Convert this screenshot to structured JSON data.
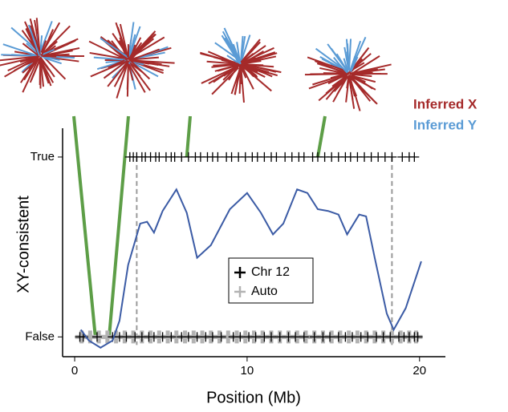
{
  "chart_data": {
    "type": "scatter",
    "xlabel": "Position (Mb)",
    "ylabel": "XY-consistent",
    "xlim": [
      -0.7,
      21.5
    ],
    "ylim": [
      -0.11,
      1.16
    ],
    "xticks": [
      0,
      10,
      20
    ],
    "yticks": [
      {
        "value": 0,
        "label": "False"
      },
      {
        "value": 1,
        "label": "True"
      }
    ],
    "series": [
      {
        "name": "Chr 12",
        "color": "#000000",
        "x": [
          3.2,
          3.4,
          3.6,
          3.9,
          4.1,
          4.4,
          4.7,
          4.9,
          5.3,
          5.6,
          5.8,
          6.2,
          6.6,
          7.0,
          7.3,
          7.7,
          8.0,
          8.3,
          8.8,
          9.1,
          9.5,
          9.9,
          10.3,
          10.6,
          11.0,
          11.4,
          11.7,
          12.2,
          12.6,
          13.0,
          13.3,
          13.8,
          14.1,
          14.5,
          14.9,
          15.3,
          15.7,
          16.0,
          16.4,
          16.8,
          17.2,
          17.6,
          18.0,
          18.4,
          19.0,
          19.4,
          19.7,
          0.3,
          0.5,
          1.3,
          2.2,
          2.6,
          3.0,
          3.5,
          3.9,
          4.3,
          4.6,
          5.1,
          5.6,
          6.2,
          6.6,
          7.1,
          7.6,
          8.0,
          8.5,
          9.2,
          9.6,
          10.1,
          10.5,
          11.0,
          11.4,
          11.9,
          12.4,
          12.8,
          13.3,
          13.9,
          14.4,
          14.8,
          15.3,
          15.7,
          16.1,
          16.6,
          17.0,
          17.5,
          17.9,
          18.3,
          18.8,
          19.1,
          19.4,
          19.7,
          19.9
        ],
        "values": [
          1,
          1,
          1,
          1,
          1,
          1,
          1,
          1,
          1,
          1,
          1,
          1,
          1,
          1,
          1,
          1,
          1,
          1,
          1,
          1,
          1,
          1,
          1,
          1,
          1,
          1,
          1,
          1,
          1,
          1,
          1,
          1,
          1,
          1,
          1,
          1,
          1,
          1,
          1,
          1,
          1,
          1,
          1,
          1,
          1,
          1,
          1,
          0,
          0,
          0,
          0,
          0,
          0,
          0,
          0,
          0,
          0,
          0,
          0,
          0,
          0,
          0,
          0,
          0,
          0,
          0,
          0,
          0,
          0,
          0,
          0,
          0,
          0,
          0,
          0,
          0,
          0,
          0,
          0,
          0,
          0,
          0,
          0,
          0,
          0,
          0,
          0,
          0,
          0,
          0,
          0
        ]
      },
      {
        "name": "Auto",
        "color": "#b3b3b3",
        "x": [
          0.4,
          0.9,
          1.4,
          1.9,
          2.4,
          2.9,
          3.4,
          3.9,
          4.4,
          4.9,
          5.4,
          5.9,
          6.4,
          6.9,
          7.4,
          7.9,
          8.4,
          8.9,
          9.4,
          9.9,
          10.4,
          10.9,
          11.4,
          11.9,
          12.4,
          12.9,
          13.4,
          13.9,
          14.4,
          14.9,
          15.4,
          15.9,
          16.4,
          16.9,
          17.4,
          17.9,
          18.4,
          18.9,
          19.4,
          19.8
        ],
        "values": [
          0,
          0,
          0,
          0,
          0,
          0,
          0,
          0,
          0,
          0,
          0,
          0,
          0,
          0,
          0,
          0,
          0,
          0,
          0,
          0,
          0,
          0,
          0,
          0,
          0,
          0,
          0,
          0,
          0,
          0,
          0,
          0,
          0,
          0,
          0,
          0,
          0,
          0,
          0,
          0
        ]
      }
    ],
    "curve": {
      "color": "#3b5ba5",
      "x": [
        0.36,
        0.82,
        1.5,
        2.2,
        2.6,
        3.1,
        3.8,
        4.2,
        4.6,
        5.1,
        5.9,
        6.5,
        7.1,
        7.9,
        9.0,
        10.0,
        10.8,
        11.5,
        12.1,
        12.9,
        13.5,
        14.1,
        14.7,
        15.3,
        15.8,
        16.5,
        16.9,
        17.4,
        18.1,
        18.5,
        19.2,
        20.1
      ],
      "values": [
        0.04,
        -0.02,
        -0.06,
        -0.02,
        0.09,
        0.4,
        0.63,
        0.64,
        0.58,
        0.7,
        0.82,
        0.69,
        0.44,
        0.51,
        0.71,
        0.8,
        0.69,
        0.57,
        0.63,
        0.82,
        0.8,
        0.71,
        0.7,
        0.68,
        0.57,
        0.68,
        0.67,
        0.44,
        0.13,
        0.04,
        0.16,
        0.42
      ]
    },
    "vlines": [
      3.6,
      18.4
    ],
    "tree_links": [
      {
        "x": 1.2,
        "y": 0
      },
      {
        "x": 2.0,
        "y": 0
      },
      {
        "x": 6.5,
        "y": 1
      },
      {
        "x": 14.1,
        "y": 1
      }
    ],
    "tree_legend": [
      {
        "name": "Inferred X",
        "color": "#a52a2a"
      },
      {
        "name": "Inferred Y",
        "color": "#5a9bd5"
      }
    ]
  }
}
